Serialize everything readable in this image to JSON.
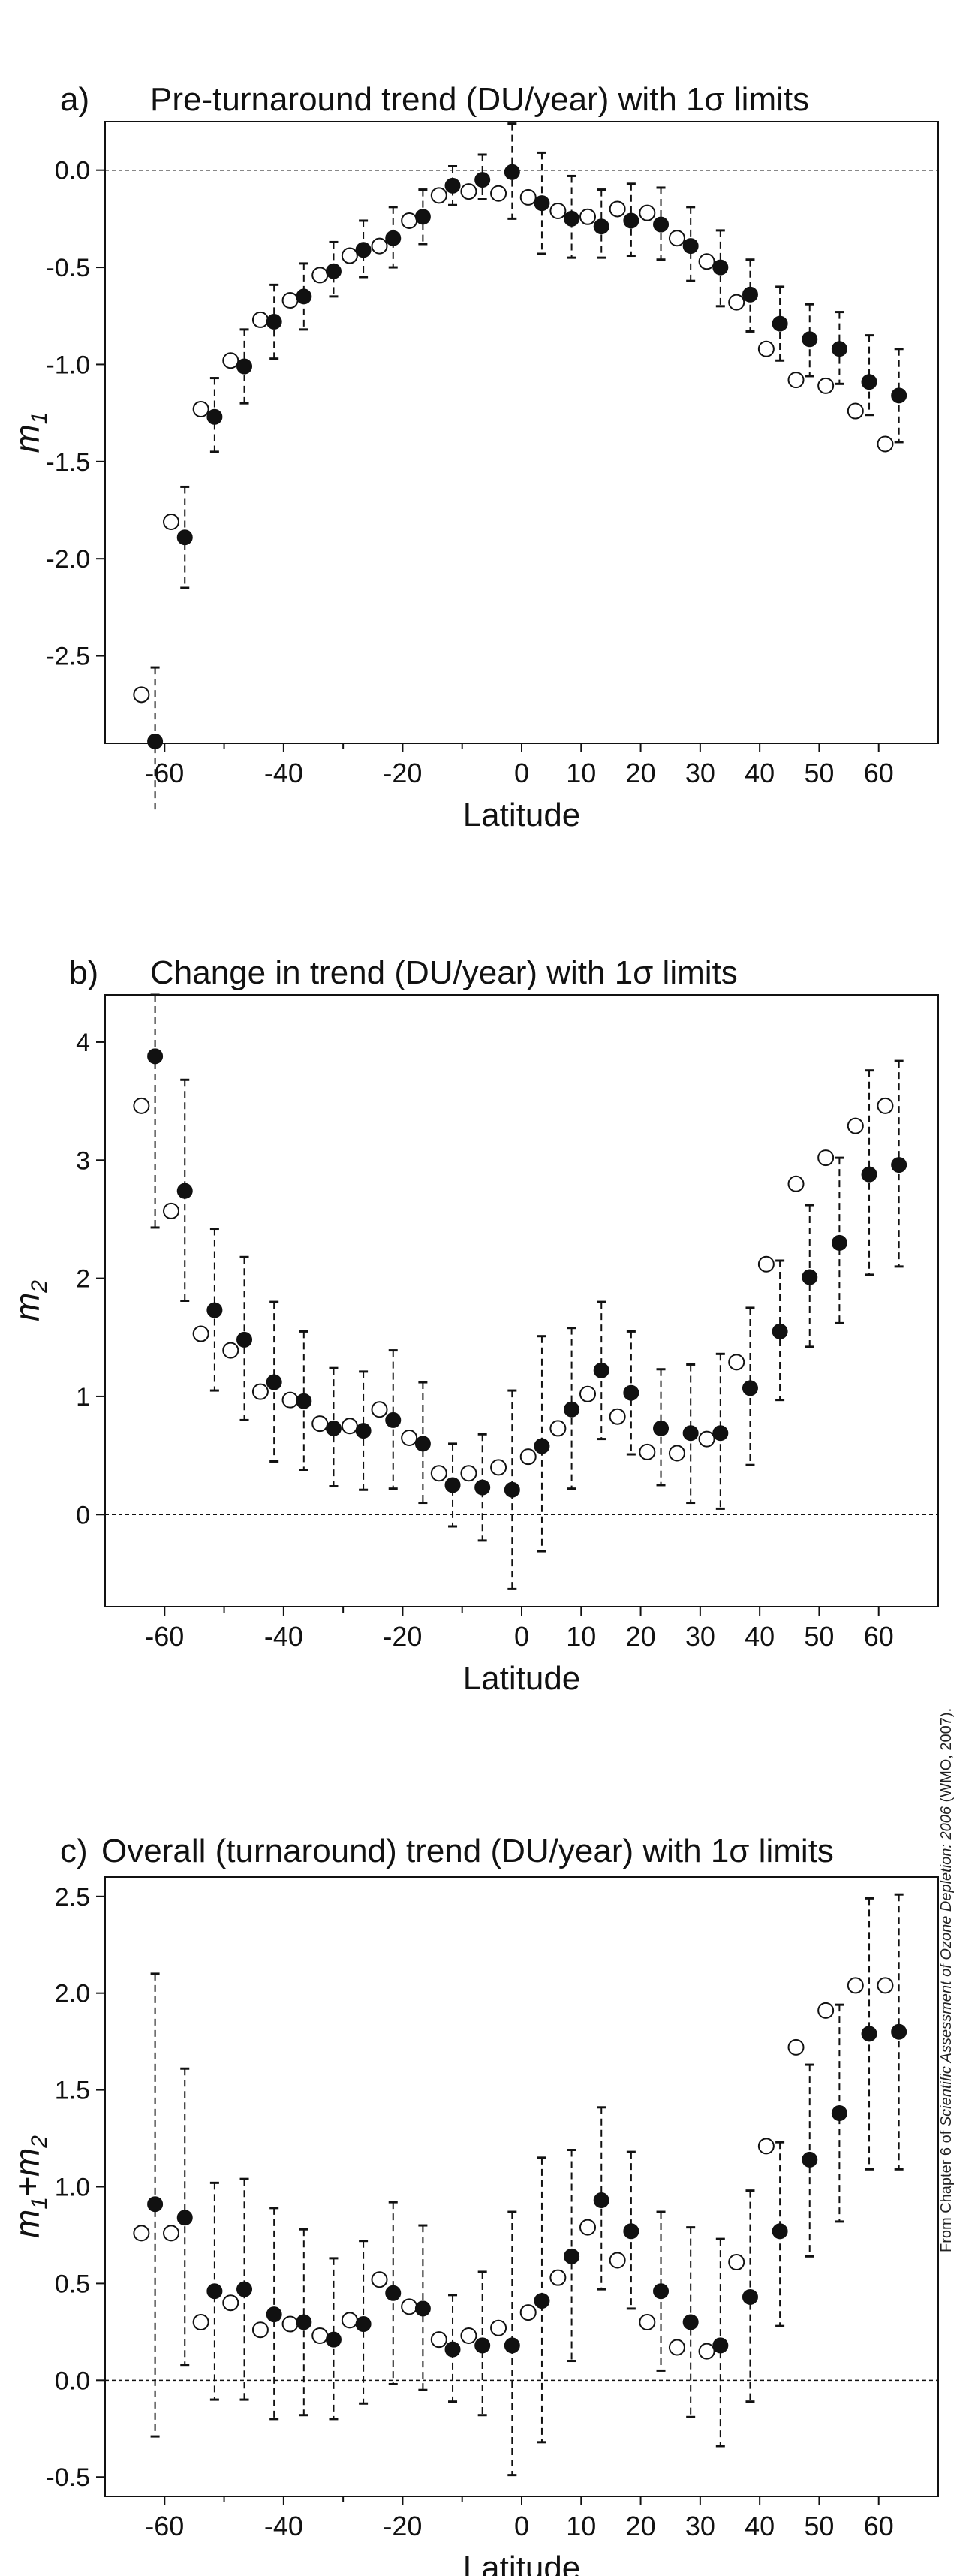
{
  "credit": {
    "prefix": "From Chapter 6 of ",
    "italic": "Scientific Assessment of Ozone Depletion: 2006",
    "suffix": " (WMO, 2007)."
  },
  "chart_data": [
    {
      "type": "scatter",
      "panel_letter": "a)",
      "title": "Pre-turnaround trend (DU/year) with 1σ limits",
      "xlabel": "Latitude",
      "ylabel_main": "m",
      "ylabel_sub": "1",
      "xlim": [
        -70,
        70
      ],
      "ylim": [
        -2.95,
        0.25
      ],
      "xticks": [
        -60,
        -40,
        -20,
        0,
        10,
        20,
        30,
        40,
        50,
        60
      ],
      "yticks": [
        0.0,
        -0.5,
        -1.0,
        -1.5,
        -2.0,
        -2.5
      ],
      "ytick_labels": [
        "0.0",
        "-0.5",
        "-1.0",
        "-1.5",
        "-2.0",
        "-2.5"
      ],
      "zero_line": true,
      "latitudes": [
        -62.5,
        -57.5,
        -52.5,
        -47.5,
        -42.5,
        -37.5,
        -32.5,
        -27.5,
        -22.5,
        -17.5,
        -12.5,
        -7.5,
        -2.5,
        2.5,
        7.5,
        12.5,
        17.5,
        22.5,
        27.5,
        32.5,
        37.5,
        42.5,
        47.5,
        52.5,
        57.5,
        62.5
      ],
      "series": [
        {
          "marker": "filled",
          "values": [
            -2.94,
            -1.89,
            -1.27,
            -1.01,
            -0.78,
            -0.65,
            -0.52,
            -0.41,
            -0.35,
            -0.24,
            -0.08,
            -0.05,
            -0.01,
            -0.17,
            -0.25,
            -0.29,
            -0.26,
            -0.28,
            -0.39,
            -0.5,
            -0.64,
            -0.79,
            -0.87,
            -0.92,
            -1.09,
            -1.16
          ],
          "err_low": [
            -3.35,
            -2.15,
            -1.45,
            -1.2,
            -0.97,
            -0.82,
            -0.65,
            -0.55,
            -0.5,
            -0.38,
            -0.18,
            -0.15,
            -0.25,
            -0.43,
            -0.45,
            -0.45,
            -0.44,
            -0.46,
            -0.57,
            -0.7,
            -0.83,
            -0.98,
            -1.06,
            -1.1,
            -1.26,
            -1.4
          ],
          "err_high": [
            -2.56,
            -1.63,
            -1.07,
            -0.82,
            -0.59,
            -0.48,
            -0.37,
            -0.26,
            -0.19,
            -0.1,
            0.02,
            0.08,
            0.24,
            0.09,
            -0.03,
            -0.1,
            -0.07,
            -0.09,
            -0.19,
            -0.31,
            -0.46,
            -0.6,
            -0.69,
            -0.73,
            -0.85,
            -0.92
          ]
        },
        {
          "marker": "open",
          "values": [
            -2.7,
            -1.81,
            -1.23,
            -0.98,
            -0.77,
            -0.67,
            -0.54,
            -0.44,
            -0.39,
            -0.26,
            -0.13,
            -0.11,
            -0.12,
            -0.14,
            -0.21,
            -0.24,
            -0.2,
            -0.22,
            -0.35,
            -0.47,
            -0.68,
            -0.92,
            -1.08,
            -1.11,
            -1.24,
            -1.41
          ]
        }
      ]
    },
    {
      "type": "scatter",
      "panel_letter": "b)",
      "title": "Change in trend (DU/year) with 1σ limits",
      "xlabel": "Latitude",
      "ylabel_main": "m",
      "ylabel_sub": "2",
      "xlim": [
        -70,
        70
      ],
      "ylim": [
        -0.78,
        4.4
      ],
      "xticks": [
        -60,
        -40,
        -20,
        0,
        10,
        20,
        30,
        40,
        50,
        60
      ],
      "yticks": [
        0,
        1,
        2,
        3,
        4
      ],
      "ytick_labels": [
        "0",
        "1",
        "2",
        "3",
        "4"
      ],
      "zero_line": true,
      "latitudes": [
        -62.5,
        -57.5,
        -52.5,
        -47.5,
        -42.5,
        -37.5,
        -32.5,
        -27.5,
        -22.5,
        -17.5,
        -12.5,
        -7.5,
        -2.5,
        2.5,
        7.5,
        12.5,
        17.5,
        22.5,
        27.5,
        32.5,
        37.5,
        42.5,
        47.5,
        52.5,
        57.5,
        62.5
      ],
      "series": [
        {
          "marker": "filled",
          "values": [
            3.88,
            2.74,
            1.73,
            1.48,
            1.12,
            0.96,
            0.73,
            0.71,
            0.8,
            0.6,
            0.25,
            0.23,
            0.21,
            0.58,
            0.89,
            1.22,
            1.03,
            0.73,
            0.69,
            0.69,
            1.07,
            1.55,
            2.01,
            2.3,
            2.88,
            2.96
          ],
          "err_low": [
            2.43,
            1.81,
            1.05,
            0.8,
            0.45,
            0.38,
            0.24,
            0.21,
            0.22,
            0.1,
            -0.1,
            -0.22,
            -0.63,
            -0.31,
            0.22,
            0.64,
            0.51,
            0.25,
            0.1,
            0.05,
            0.42,
            0.97,
            1.42,
            1.62,
            2.03,
            2.1
          ],
          "err_high": [
            4.4,
            3.68,
            2.42,
            2.18,
            1.8,
            1.55,
            1.24,
            1.21,
            1.39,
            1.12,
            0.6,
            0.68,
            1.05,
            1.51,
            1.58,
            1.8,
            1.55,
            1.23,
            1.27,
            1.36,
            1.75,
            2.15,
            2.62,
            3.02,
            3.76,
            3.84
          ]
        },
        {
          "marker": "open",
          "values": [
            3.46,
            2.57,
            1.53,
            1.39,
            1.04,
            0.97,
            0.77,
            0.75,
            0.89,
            0.65,
            0.35,
            0.35,
            0.4,
            0.49,
            0.73,
            1.02,
            0.83,
            0.53,
            0.52,
            0.64,
            1.29,
            2.12,
            2.8,
            3.02,
            3.29,
            3.46
          ]
        }
      ]
    },
    {
      "type": "scatter",
      "panel_letter": "c)",
      "title": "Overall (turnaround) trend (DU/year) with 1σ limits",
      "xlabel": "Latitude",
      "ylabel_main": "m",
      "ylabel_sub": "1",
      "ylabel_plus": "+m",
      "ylabel_sub2": "2",
      "xlim": [
        -70,
        70
      ],
      "ylim": [
        -0.6,
        2.6
      ],
      "xticks": [
        -60,
        -40,
        -20,
        0,
        10,
        20,
        30,
        40,
        50,
        60
      ],
      "yticks": [
        -0.5,
        0.0,
        0.5,
        1.0,
        1.5,
        2.0,
        2.5
      ],
      "ytick_labels": [
        "-0.5",
        "0.0",
        "0.5",
        "1.0",
        "1.5",
        "2.0",
        "2.5"
      ],
      "zero_line": true,
      "latitudes": [
        -62.5,
        -57.5,
        -52.5,
        -47.5,
        -42.5,
        -37.5,
        -32.5,
        -27.5,
        -22.5,
        -17.5,
        -12.5,
        -7.5,
        -2.5,
        2.5,
        7.5,
        12.5,
        17.5,
        22.5,
        27.5,
        32.5,
        37.5,
        42.5,
        47.5,
        52.5,
        57.5,
        62.5
      ],
      "series": [
        {
          "marker": "filled",
          "values": [
            0.91,
            0.84,
            0.46,
            0.47,
            0.34,
            0.3,
            0.21,
            0.29,
            0.45,
            0.37,
            0.16,
            0.18,
            0.18,
            0.41,
            0.64,
            0.93,
            0.77,
            0.46,
            0.3,
            0.18,
            0.43,
            0.77,
            1.14,
            1.38,
            1.79,
            1.8
          ],
          "err_low": [
            -0.29,
            0.08,
            -0.1,
            -0.1,
            -0.2,
            -0.18,
            -0.2,
            -0.12,
            -0.02,
            -0.05,
            -0.11,
            -0.18,
            -0.49,
            -0.32,
            0.1,
            0.47,
            0.37,
            0.05,
            -0.19,
            -0.34,
            -0.11,
            0.28,
            0.64,
            0.82,
            1.09,
            1.09
          ],
          "err_high": [
            2.1,
            1.61,
            1.02,
            1.04,
            0.89,
            0.78,
            0.63,
            0.72,
            0.92,
            0.8,
            0.44,
            0.56,
            0.87,
            1.15,
            1.19,
            1.41,
            1.18,
            0.87,
            0.79,
            0.73,
            0.98,
            1.23,
            1.63,
            1.94,
            2.49,
            2.51
          ]
        },
        {
          "marker": "open",
          "values": [
            0.76,
            0.76,
            0.3,
            0.4,
            0.26,
            0.29,
            0.23,
            0.31,
            0.52,
            0.38,
            0.21,
            0.23,
            0.27,
            0.35,
            0.53,
            0.79,
            0.62,
            0.3,
            0.17,
            0.15,
            0.61,
            1.21,
            1.72,
            1.91,
            2.04,
            2.04
          ]
        }
      ]
    }
  ]
}
